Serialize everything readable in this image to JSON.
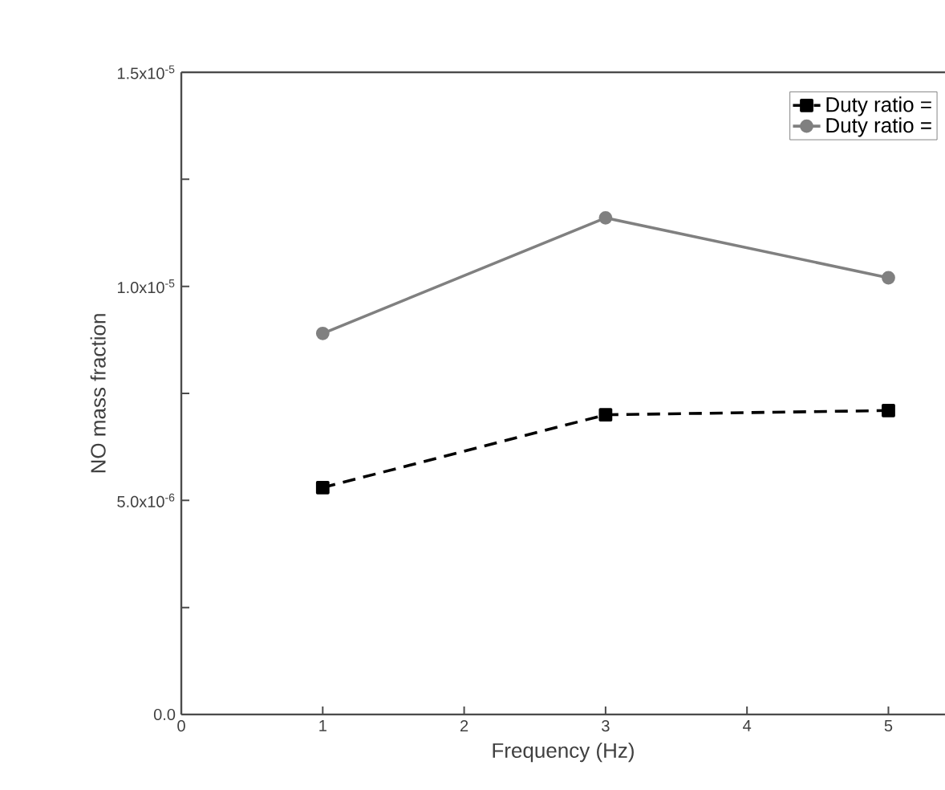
{
  "chart_data": {
    "type": "line",
    "xlabel": "Frequency (Hz)",
    "ylabel": "NO mass fraction",
    "x": [
      1,
      3,
      5
    ],
    "series": [
      {
        "name": "Duty ratio =",
        "color": "#000000",
        "values": [
          5.3e-06,
          7e-06,
          7.1e-06
        ],
        "marker": "square",
        "line_style": "dashed"
      },
      {
        "name": "Duty ratio =",
        "color": "#808080",
        "values": [
          8.9e-06,
          1.16e-05,
          1.02e-05
        ],
        "marker": "circle",
        "line_style": "solid"
      }
    ],
    "xlim": [
      0,
      5.4
    ],
    "xticks": [
      0,
      1,
      2,
      3,
      4,
      5
    ],
    "ylim": [
      0,
      1.5e-05
    ],
    "yticks": [
      {
        "value": 0,
        "label": "0.0"
      },
      {
        "value": 2.5e-06,
        "label": null
      },
      {
        "value": 5e-06,
        "label": "5.0x10$^{-6}$"
      },
      {
        "value": 7.5e-06,
        "label": null
      },
      {
        "value": 1e-05,
        "label": "1.0x10$^{-5}$"
      },
      {
        "value": 1.25e-05,
        "label": null
      },
      {
        "value": 1.5e-05,
        "label": "1.5x10$^{-5}$"
      }
    ],
    "legend": "top right",
    "grid": false
  }
}
